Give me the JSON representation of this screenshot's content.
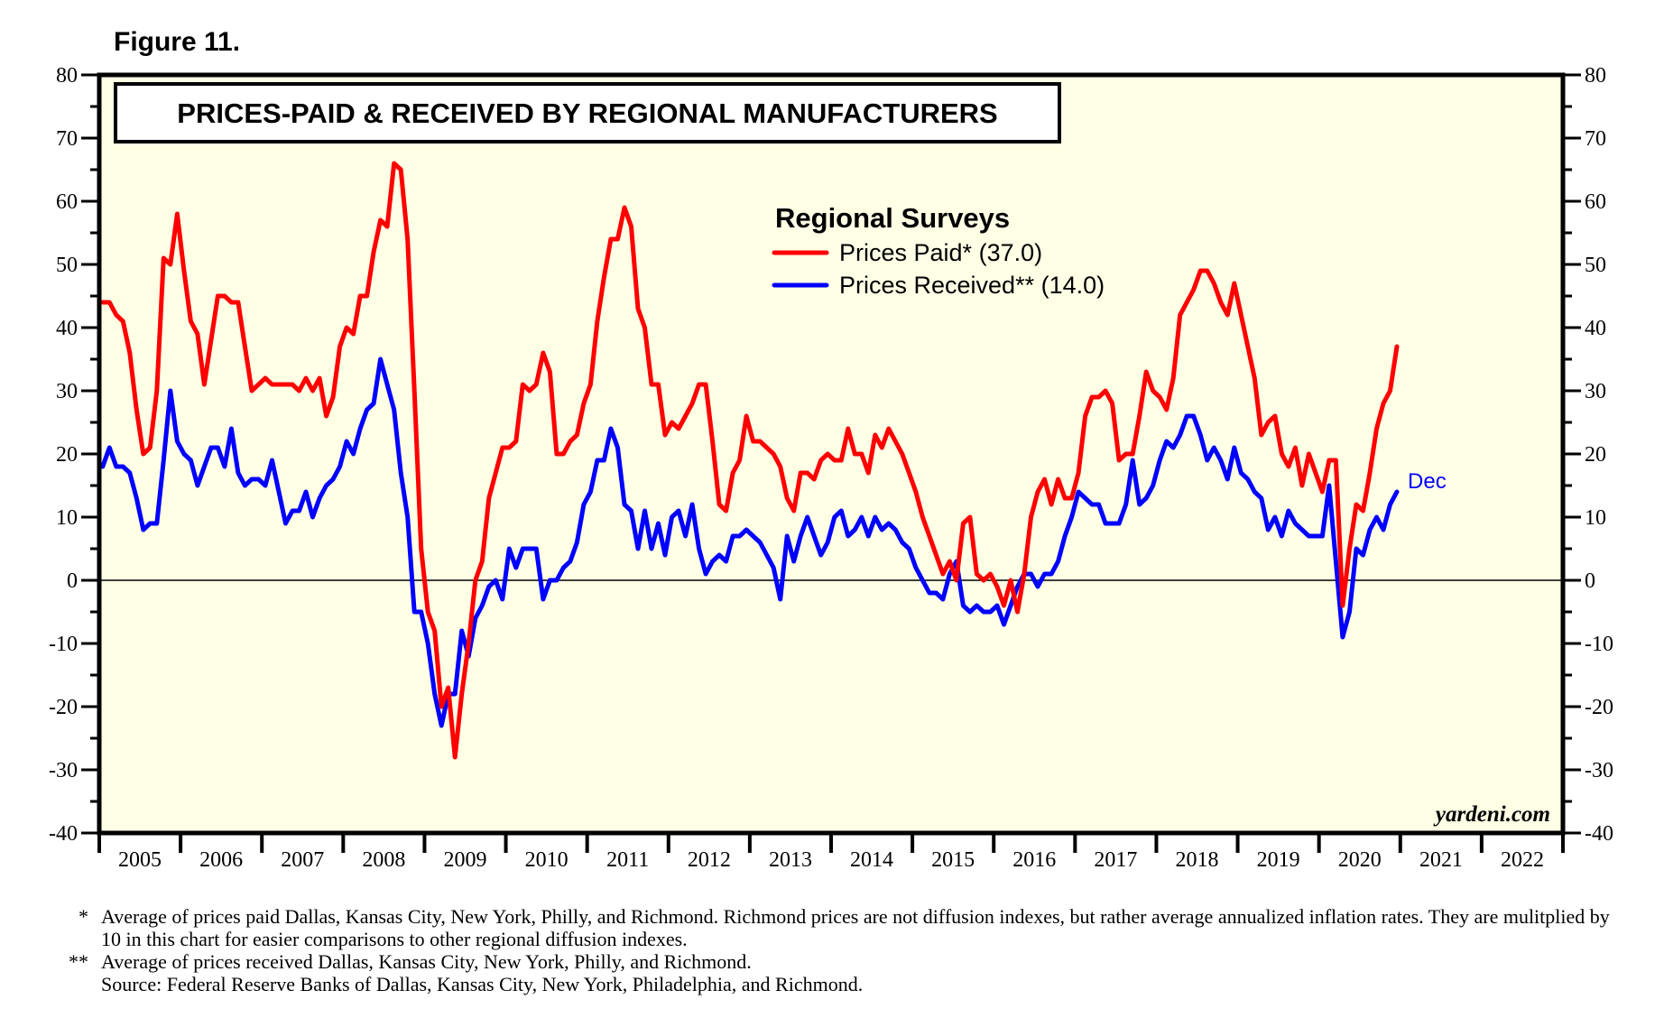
{
  "figure_label": "Figure 11.",
  "footnotes": [
    {
      "mark": "*",
      "text": "Average of prices paid Dallas, Kansas City, New York, Philly, and Richmond. Richmond prices are not diffusion indexes, but rather average annualized inflation rates. They are mulitplied by 10 in this chart for easier comparisons to other regional diffusion indexes."
    },
    {
      "mark": "**",
      "text": "Average of prices received Dallas, Kansas City, New York, Philly, and Richmond."
    },
    {
      "mark": "",
      "text": "Source: Federal Reserve Banks of Dallas, Kansas City, New York, Philadelphia, and Richmond."
    }
  ],
  "chart_data": {
    "type": "line",
    "title": "PRICES-PAID & RECEIVED BY REGIONAL MANUFACTURERS",
    "legend_title": "Regional Surveys",
    "legend_placement": "top-center",
    "watermark": "yardeni.com",
    "end_label": "Dec",
    "xlabel": "",
    "ylabel": "",
    "ylim": [
      -40,
      80
    ],
    "yticks": [
      80,
      70,
      60,
      50,
      40,
      30,
      20,
      10,
      0,
      -10,
      -20,
      -30,
      -40
    ],
    "ytick_labels": [
      "80",
      "70",
      "60",
      "50",
      "40",
      "30",
      "20",
      "10",
      "0",
      "-10",
      "-20",
      "-30",
      "-40"
    ],
    "xlim": [
      "2005-01",
      "2022-12"
    ],
    "x_tick_labels": [
      "2005",
      "2006",
      "2007",
      "2008",
      "2009",
      "2010",
      "2011",
      "2012",
      "2013",
      "2014",
      "2015",
      "2016",
      "2017",
      "2018",
      "2019",
      "2020",
      "2021",
      "2022"
    ],
    "zero_line": true,
    "grid": false,
    "background_color": "#ffffe6",
    "x_start": "2005-01",
    "frequency": "monthly",
    "series": [
      {
        "name": "Prices Paid*",
        "latest": "37.0",
        "color": "#ff0000",
        "values": [
          44,
          44,
          42,
          41,
          36,
          27,
          20,
          21,
          30,
          51,
          50,
          58,
          49,
          41,
          39,
          31,
          38,
          45,
          45,
          44,
          44,
          37,
          30,
          31,
          32,
          31,
          31,
          31,
          31,
          30,
          32,
          30,
          32,
          26,
          29,
          37,
          40,
          39,
          45,
          45,
          52,
          57,
          56,
          66,
          65,
          54,
          30,
          5,
          -5,
          -8,
          -20,
          -17,
          -28,
          -18,
          -10,
          0,
          3,
          13,
          17,
          21,
          21,
          22,
          31,
          30,
          31,
          36,
          33,
          20,
          20,
          22,
          23,
          28,
          31,
          41,
          48,
          54,
          54,
          59,
          56,
          43,
          40,
          31,
          31,
          23,
          25,
          24,
          26,
          28,
          31,
          31,
          22,
          12,
          11,
          17,
          19,
          26,
          22,
          22,
          21,
          20,
          18,
          13,
          11,
          17,
          17,
          16,
          19,
          20,
          19,
          19,
          24,
          20,
          20,
          17,
          23,
          21,
          24,
          22,
          20,
          17,
          14,
          10,
          7,
          4,
          1,
          3,
          0,
          9,
          10,
          1,
          0,
          1,
          -1,
          -4,
          0,
          -5,
          1,
          10,
          14,
          16,
          12,
          16,
          13,
          13,
          17,
          26,
          29,
          29,
          30,
          28,
          19,
          20,
          20,
          26,
          33,
          30,
          29,
          27,
          32,
          42,
          44,
          46,
          49,
          49,
          47,
          44,
          42,
          47,
          42,
          37,
          32,
          23,
          25,
          26,
          20,
          18,
          21,
          15,
          20,
          17,
          14,
          19,
          19,
          -4,
          5,
          12,
          11,
          17,
          24,
          28,
          30,
          37
        ]
      },
      {
        "name": "Prices Received**",
        "latest": "14.0",
        "color": "#0000ff",
        "values": [
          18,
          21,
          18,
          18,
          17,
          13,
          8,
          9,
          9,
          19,
          30,
          22,
          20,
          19,
          15,
          18,
          21,
          21,
          18,
          24,
          17,
          15,
          16,
          16,
          15,
          19,
          14,
          9,
          11,
          11,
          14,
          10,
          13,
          15,
          16,
          18,
          22,
          20,
          24,
          27,
          28,
          35,
          31,
          27,
          17,
          10,
          -5,
          -5,
          -10,
          -18,
          -23,
          -18,
          -18,
          -8,
          -12,
          -6,
          -4,
          -1,
          0,
          -3,
          5,
          2,
          5,
          5,
          5,
          -3,
          0,
          0,
          2,
          3,
          6,
          12,
          14,
          19,
          19,
          24,
          21,
          12,
          11,
          5,
          11,
          5,
          9,
          4,
          10,
          11,
          7,
          12,
          5,
          1,
          3,
          4,
          3,
          7,
          7,
          8,
          7,
          6,
          4,
          2,
          -3,
          7,
          3,
          7,
          10,
          7,
          4,
          6,
          10,
          11,
          7,
          8,
          10,
          7,
          10,
          8,
          9,
          8,
          6,
          5,
          2,
          0,
          -2,
          -2,
          -3,
          1,
          3,
          -4,
          -5,
          -4,
          -5,
          -5,
          -4,
          -7,
          -4,
          -1,
          1,
          1,
          -1,
          1,
          1,
          3,
          7,
          10,
          14,
          13,
          12,
          12,
          9,
          9,
          9,
          12,
          19,
          12,
          13,
          15,
          19,
          22,
          21,
          23,
          26,
          26,
          23,
          19,
          21,
          19,
          16,
          21,
          17,
          16,
          14,
          13,
          8,
          10,
          7,
          11,
          9,
          8,
          7,
          7,
          7,
          15,
          3,
          -9,
          -5,
          5,
          4,
          8,
          10,
          8,
          12,
          14
        ]
      }
    ]
  }
}
